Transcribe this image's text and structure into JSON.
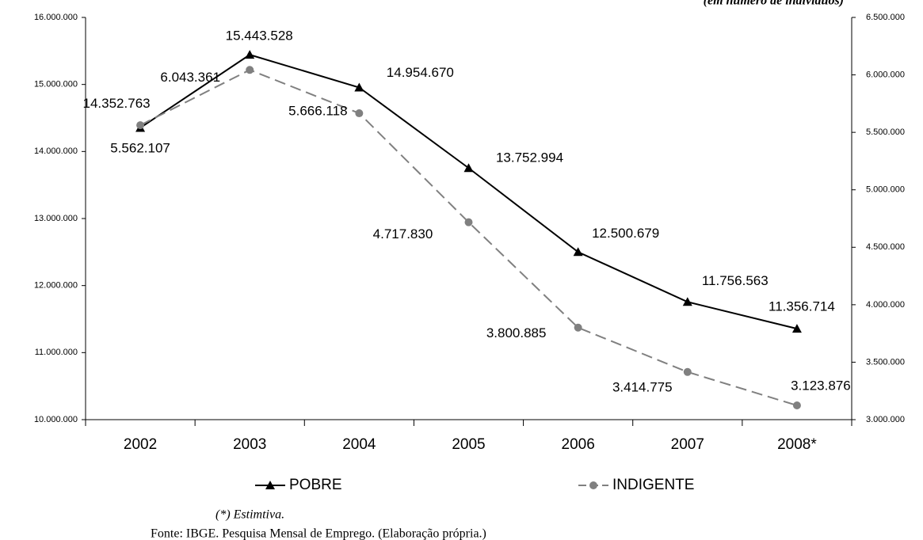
{
  "chart_data": {
    "type": "line",
    "subtitle": "(em número de indivíduos)",
    "categories": [
      "2002",
      "2003",
      "2004",
      "2005",
      "2006",
      "2007",
      "2008*"
    ],
    "series": [
      {
        "name": "POBRE",
        "color": "#000000",
        "marker": "triangle",
        "dash": "solid",
        "values": [
          14352763,
          15443528,
          14954670,
          13752994,
          12500679,
          11756563,
          11356714
        ],
        "value_labels": [
          "14.352.763",
          "15.443.528",
          "14.954.670",
          "13.752.994",
          "12.500.679",
          "11.756.563",
          "11.356.714"
        ]
      },
      {
        "name": "INDIGENTE",
        "color": "#808080",
        "marker": "circle",
        "dash": "dashed",
        "axis": "y2",
        "values": [
          5562107,
          6043361,
          5666118,
          4717830,
          3800885,
          3414775,
          3123876
        ],
        "value_labels": [
          "5.562.107",
          "6.043.361",
          "5.666.118",
          "4.717.830",
          "3.800.885",
          "3.414.775",
          "3.123.876"
        ]
      }
    ],
    "ylim": [
      10000000,
      16000000
    ],
    "yticks": [
      {
        "value": 10000000,
        "label": "10.000.000"
      },
      {
        "value": 11000000,
        "label": "11.000.000"
      },
      {
        "value": 12000000,
        "label": "12.000.000"
      },
      {
        "value": 13000000,
        "label": "13.000.000"
      },
      {
        "value": 14000000,
        "label": "14.000.000"
      },
      {
        "value": 15000000,
        "label": "15.000.000"
      },
      {
        "value": 16000000,
        "label": "16.000.000"
      }
    ],
    "y2lim": [
      3000000,
      6500000
    ],
    "y2ticks": [
      {
        "value": 3000000,
        "label": "3.000.000"
      },
      {
        "value": 3500000,
        "label": "3.500.000"
      },
      {
        "value": 4000000,
        "label": "4.000.000"
      },
      {
        "value": 4500000,
        "label": "4.500.000"
      },
      {
        "value": 5000000,
        "label": "5.000.000"
      },
      {
        "value": 5500000,
        "label": "5.500.000"
      },
      {
        "value": 6000000,
        "label": "6.000.000"
      },
      {
        "value": 6500000,
        "label": "6.500.000"
      }
    ],
    "grid": false,
    "legend": "bottom",
    "footnotes": [
      "(*) Estimtiva.",
      "Fonte: IBGE. Pesquisa Mensal de Emprego. (Elaboração própria.)"
    ]
  }
}
